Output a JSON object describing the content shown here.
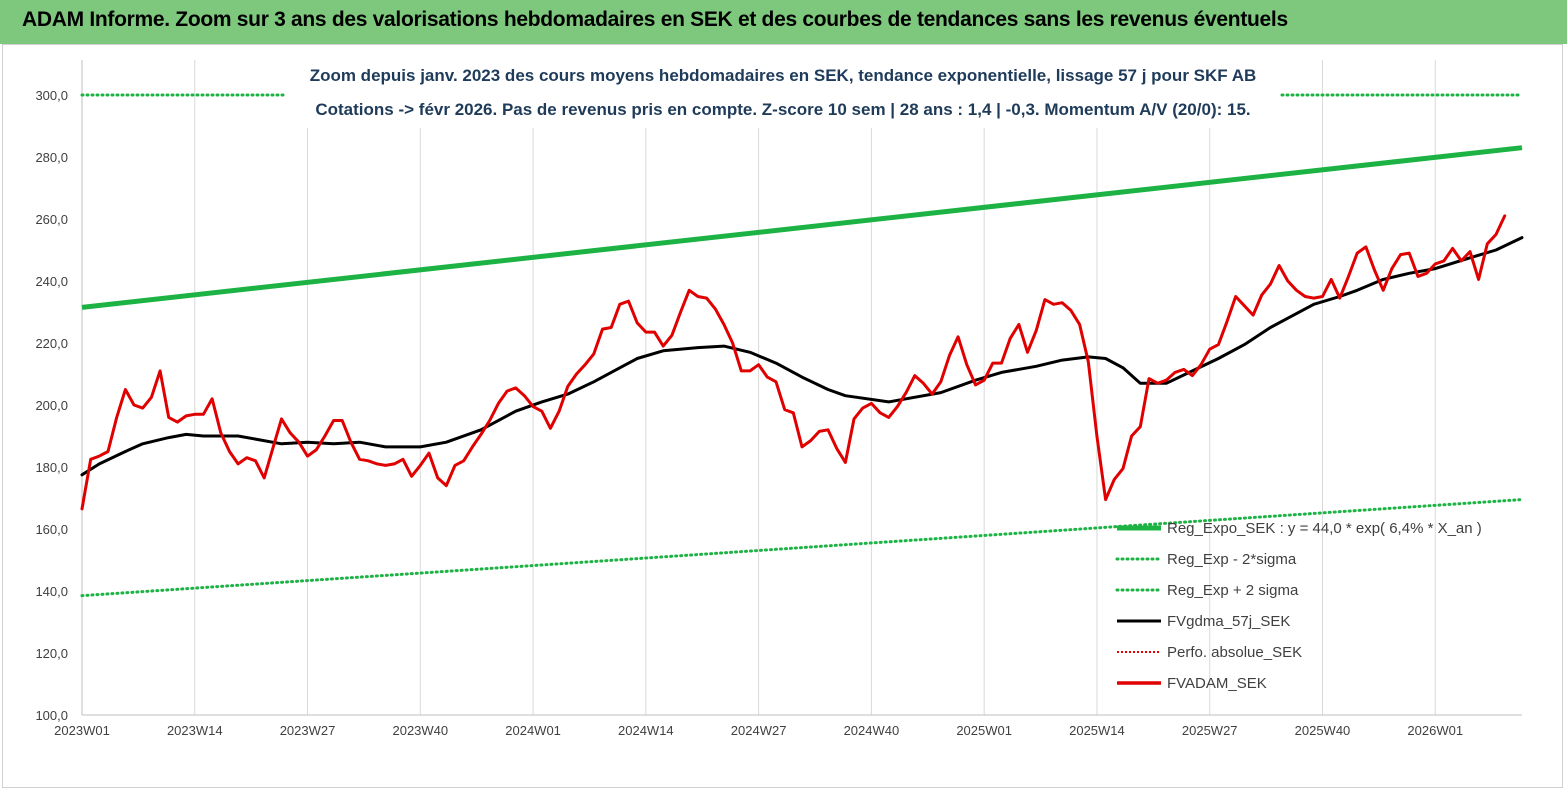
{
  "header": {
    "title": "ADAM Informe. Zoom sur 3 ans des valorisations hebdomadaires en SEK et des courbes de tendances sans les revenus éventuels"
  },
  "chart_data": {
    "type": "line",
    "subtitle_line1": "Zoom depuis janv. 2023 des cours moyens hebdomadaires en SEK, tendance exponentielle, lissage 57 j pour SKF AB",
    "subtitle_line2": "Cotations -> févr 2026.  Pas de revenus pris en compte. Z-score 10 sem | 28 ans : 1,4 | -0,3. Momentum A/V (20/0): 15.",
    "ylim": [
      100,
      300
    ],
    "y_ticks": [
      "100,0",
      "120,0",
      "140,0",
      "160,0",
      "180,0",
      "200,0",
      "220,0",
      "240,0",
      "260,0",
      "280,0",
      "300,0"
    ],
    "x_ticks": [
      "2023W01",
      "2023W14",
      "2023W27",
      "2023W40",
      "2024W01",
      "2024W14",
      "2024W27",
      "2024W40",
      "2025W01",
      "2025W14",
      "2025W27",
      "2025W40",
      "2026W01"
    ],
    "x_tick_weeks": [
      0,
      13,
      26,
      39,
      52,
      65,
      78,
      91,
      104,
      117,
      130,
      143,
      156
    ],
    "week_count": 166,
    "grid": "vertical",
    "legend_position": "bottom-right",
    "series": [
      {
        "name": "Reg_Expo_SEK : y = 44,0 * exp( 6,4% *  X_an )",
        "color": "#1db344",
        "style": "thick",
        "start": 231.5,
        "end": 283
      },
      {
        "name": "Reg_Exp - 2*sigma",
        "color": "#1db344",
        "style": "dotted",
        "start": 138.5,
        "end": 169.5
      },
      {
        "name": "Reg_Exp + 2 sigma",
        "color": "#1db344",
        "style": "dotted",
        "start": 300,
        "end": 300
      },
      {
        "name": "FVgdma_57j_SEK",
        "color": "#000000",
        "style": "solid",
        "points": [
          [
            0,
            177.5
          ],
          [
            2,
            181
          ],
          [
            5,
            185
          ],
          [
            7,
            187.5
          ],
          [
            10,
            189.5
          ],
          [
            12,
            190.5
          ],
          [
            14,
            190
          ],
          [
            18,
            190
          ],
          [
            20,
            189
          ],
          [
            23,
            187.5
          ],
          [
            26,
            188
          ],
          [
            29,
            187.5
          ],
          [
            32,
            188
          ],
          [
            35,
            186.5
          ],
          [
            39,
            186.5
          ],
          [
            42,
            188
          ],
          [
            46,
            192
          ],
          [
            50,
            198
          ],
          [
            53,
            201
          ],
          [
            56,
            203.5
          ],
          [
            59,
            207.5
          ],
          [
            62,
            212
          ],
          [
            64,
            215
          ],
          [
            67,
            217.5
          ],
          [
            71,
            218.5
          ],
          [
            74,
            219
          ],
          [
            77,
            217
          ],
          [
            80,
            213.5
          ],
          [
            83,
            209
          ],
          [
            86,
            205
          ],
          [
            88,
            203
          ],
          [
            93,
            201
          ],
          [
            95,
            202
          ],
          [
            99,
            204
          ],
          [
            103,
            208
          ],
          [
            106,
            210.5
          ],
          [
            110,
            212.5
          ],
          [
            113,
            214.5
          ],
          [
            116,
            215.5
          ],
          [
            118,
            215
          ],
          [
            120,
            212
          ],
          [
            122,
            207
          ],
          [
            125,
            207
          ],
          [
            128,
            211
          ],
          [
            131,
            215
          ],
          [
            134,
            219.5
          ],
          [
            137,
            225
          ],
          [
            139,
            228
          ],
          [
            142,
            232.5
          ],
          [
            145,
            235
          ],
          [
            147,
            237
          ],
          [
            150,
            240.5
          ],
          [
            153,
            242.5
          ],
          [
            156,
            244
          ],
          [
            160,
            247.5
          ],
          [
            163,
            250
          ],
          [
            166,
            254
          ]
        ]
      },
      {
        "name": "Perfo. absolue_SEK",
        "color": "#e00000",
        "style": "dotted"
      },
      {
        "name": "FVADAM_SEK",
        "color": "#e00000",
        "style": "thick",
        "points": [
          [
            0,
            166.5
          ],
          [
            1,
            182.5
          ],
          [
            2,
            183.5
          ],
          [
            3,
            185
          ],
          [
            4,
            196
          ],
          [
            5,
            205
          ],
          [
            6,
            200
          ],
          [
            7,
            199
          ],
          [
            8,
            202.5
          ],
          [
            9,
            211
          ],
          [
            10,
            196
          ],
          [
            11,
            194.5
          ],
          [
            12,
            196.5
          ],
          [
            13,
            197
          ],
          [
            14,
            197
          ],
          [
            15,
            202
          ],
          [
            16,
            191
          ],
          [
            17,
            185
          ],
          [
            18,
            181
          ],
          [
            19,
            183
          ],
          [
            20,
            182
          ],
          [
            21,
            176.5
          ],
          [
            22,
            186
          ],
          [
            23,
            195.5
          ],
          [
            24,
            191
          ],
          [
            25,
            188
          ],
          [
            26,
            183.5
          ],
          [
            27,
            185.5
          ],
          [
            28,
            190
          ],
          [
            29,
            195
          ],
          [
            30,
            195
          ],
          [
            31,
            188
          ],
          [
            32,
            182.5
          ],
          [
            33,
            182
          ],
          [
            34,
            181
          ],
          [
            35,
            180.5
          ],
          [
            36,
            181
          ],
          [
            37,
            182.5
          ],
          [
            38,
            177
          ],
          [
            39,
            180.5
          ],
          [
            40,
            184.5
          ],
          [
            41,
            176.5
          ],
          [
            42,
            174
          ],
          [
            43,
            180.5
          ],
          [
            44,
            182
          ],
          [
            45,
            186.5
          ],
          [
            46,
            190.5
          ],
          [
            47,
            195
          ],
          [
            48,
            200.5
          ],
          [
            49,
            204.5
          ],
          [
            50,
            205.5
          ],
          [
            51,
            203
          ],
          [
            52,
            199.5
          ],
          [
            53,
            198
          ],
          [
            54,
            192.5
          ],
          [
            55,
            198
          ],
          [
            56,
            206
          ],
          [
            57,
            210
          ],
          [
            58,
            213
          ],
          [
            59,
            216.5
          ],
          [
            60,
            224.5
          ],
          [
            61,
            225
          ],
          [
            62,
            232.5
          ],
          [
            63,
            233.5
          ],
          [
            64,
            226.5
          ],
          [
            65,
            223.5
          ],
          [
            66,
            223.5
          ],
          [
            67,
            219
          ],
          [
            68,
            222.5
          ],
          [
            69,
            230
          ],
          [
            70,
            237
          ],
          [
            71,
            235
          ],
          [
            72,
            234.5
          ],
          [
            73,
            231
          ],
          [
            74,
            226
          ],
          [
            75,
            220
          ],
          [
            76,
            211
          ],
          [
            77,
            211
          ],
          [
            78,
            213
          ],
          [
            79,
            209
          ],
          [
            80,
            207.5
          ],
          [
            81,
            198.5
          ],
          [
            82,
            197.5
          ],
          [
            83,
            186.5
          ],
          [
            84,
            188.5
          ],
          [
            85,
            191.5
          ],
          [
            86,
            192
          ],
          [
            87,
            186
          ],
          [
            88,
            181.5
          ],
          [
            89,
            195.5
          ],
          [
            90,
            199
          ],
          [
            91,
            200.5
          ],
          [
            92,
            197.5
          ],
          [
            93,
            196
          ],
          [
            94,
            199.5
          ],
          [
            95,
            204
          ],
          [
            96,
            209.5
          ],
          [
            97,
            207
          ],
          [
            98,
            203.5
          ],
          [
            99,
            207.5
          ],
          [
            100,
            216
          ],
          [
            101,
            222
          ],
          [
            102,
            213
          ],
          [
            103,
            206.5
          ],
          [
            104,
            208
          ],
          [
            105,
            213.5
          ],
          [
            106,
            213.5
          ],
          [
            107,
            221.5
          ],
          [
            108,
            226
          ],
          [
            109,
            217
          ],
          [
            110,
            224
          ],
          [
            111,
            234
          ],
          [
            112,
            232.5
          ],
          [
            113,
            233
          ],
          [
            114,
            230.5
          ],
          [
            115,
            226
          ],
          [
            116,
            214
          ],
          [
            117,
            190
          ],
          [
            118,
            169.5
          ],
          [
            119,
            176
          ],
          [
            120,
            179.5
          ],
          [
            121,
            190
          ],
          [
            122,
            193
          ],
          [
            123,
            208.5
          ],
          [
            124,
            207
          ],
          [
            125,
            208
          ],
          [
            126,
            210.5
          ],
          [
            127,
            211.5
          ],
          [
            128,
            209.5
          ],
          [
            129,
            213
          ],
          [
            130,
            218
          ],
          [
            131,
            219.5
          ],
          [
            132,
            227
          ],
          [
            133,
            235
          ],
          [
            134,
            232
          ],
          [
            135,
            229
          ],
          [
            136,
            235.5
          ],
          [
            137,
            239
          ],
          [
            138,
            245
          ],
          [
            139,
            240
          ],
          [
            140,
            237
          ],
          [
            141,
            235
          ],
          [
            142,
            234.5
          ],
          [
            143,
            235
          ],
          [
            144,
            240.5
          ],
          [
            145,
            234.5
          ],
          [
            146,
            241.5
          ],
          [
            147,
            249
          ],
          [
            148,
            251
          ],
          [
            149,
            243.5
          ],
          [
            150,
            237
          ],
          [
            151,
            244
          ],
          [
            152,
            248.5
          ],
          [
            153,
            249
          ],
          [
            154,
            241.5
          ],
          [
            155,
            242.5
          ],
          [
            156,
            245.5
          ],
          [
            157,
            246.5
          ],
          [
            158,
            250.5
          ],
          [
            159,
            246.5
          ],
          [
            160,
            249.5
          ],
          [
            161,
            240.5
          ],
          [
            162,
            252
          ],
          [
            163,
            255
          ],
          [
            164,
            261
          ]
        ]
      }
    ]
  }
}
